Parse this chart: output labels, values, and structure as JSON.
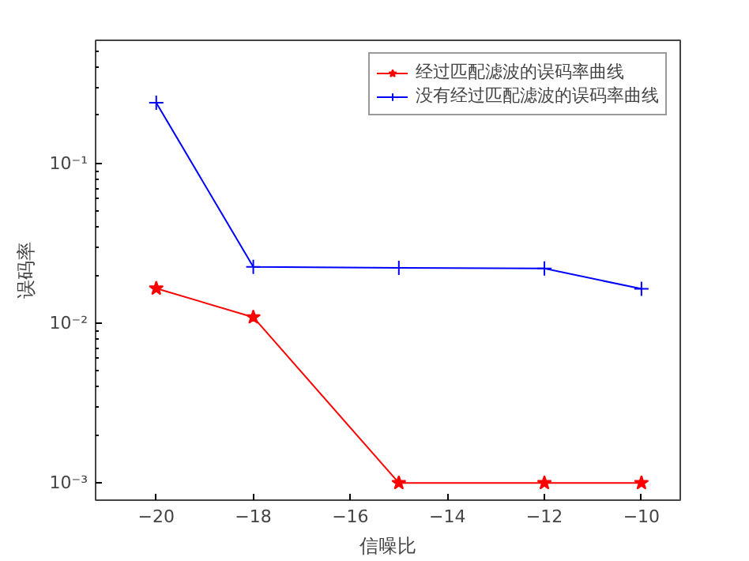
{
  "chart_data": {
    "type": "line",
    "xlabel": "信噪比",
    "ylabel": "误码率",
    "x": [
      -20,
      -18,
      -15,
      -12,
      -10
    ],
    "series": [
      {
        "name": "经过匹配滤波的误码率曲线",
        "color": "#ff0000",
        "marker": "star",
        "values": [
          0.0165,
          0.0109,
          0.001,
          0.001,
          0.001
        ]
      },
      {
        "name": "没有经过匹配滤波的误码率曲线",
        "color": "#0000ff",
        "marker": "cross",
        "values": [
          0.24,
          0.0225,
          0.0222,
          0.022,
          0.0164
        ]
      }
    ],
    "log": "y",
    "xlim": [
      -21.25,
      -9.2
    ],
    "ylim": [
      0.00078,
      0.59
    ],
    "xticks": [
      -20,
      -18,
      -16,
      -14,
      -12,
      -10
    ],
    "yticks": [
      {
        "value": 0.001,
        "label": "10⁻³"
      },
      {
        "value": 0.01,
        "label": "10⁻²"
      },
      {
        "value": 0.1,
        "label": "10⁻¹"
      }
    ],
    "grid": false,
    "legend": "top right",
    "line_style": "solid"
  }
}
